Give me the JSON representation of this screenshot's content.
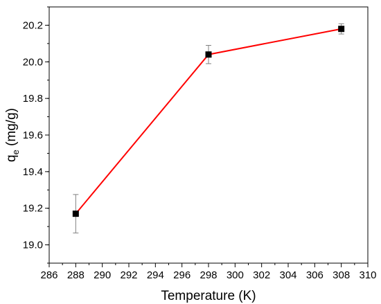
{
  "chart_data": {
    "type": "line",
    "xlabel": "Temperature (K)",
    "ylabel_main": "q",
    "ylabel_sub": "e",
    "ylabel_units": " (mg/g)",
    "xlim": [
      286,
      310
    ],
    "ylim": [
      18.9,
      20.3
    ],
    "xticks": [
      286,
      288,
      290,
      292,
      294,
      296,
      298,
      300,
      302,
      304,
      306,
      308,
      310
    ],
    "yticks": [
      "19.0",
      "19.2",
      "19.4",
      "19.6",
      "19.8",
      "20.0",
      "20.2"
    ],
    "series": [
      {
        "x": [
          288,
          298,
          308
        ],
        "y": [
          19.17,
          20.04,
          20.18
        ],
        "error": [
          0.105,
          0.05,
          0.028
        ]
      }
    ],
    "line_color": "#ff0000",
    "marker_color": "#000000",
    "error_bar_color": "#808080",
    "grid": false
  }
}
